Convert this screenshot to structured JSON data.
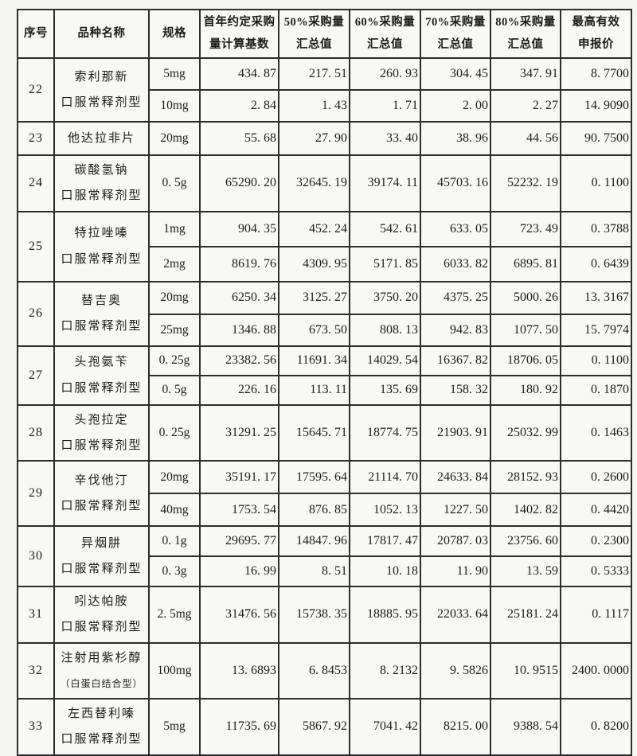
{
  "header": [
    "序号",
    "品种名称",
    "规格",
    "首年约定采购\n量计算基数",
    "50%采购量\n汇总值",
    "60%采购量\n汇总值",
    "70%采购量\n汇总值",
    "80%采购量\n汇总值",
    "最高有效\n申报价"
  ],
  "rows": [
    {
      "no": "22",
      "name": "索利那新",
      "name2": "口服常释剂型",
      "name2_small": false,
      "specs": [
        {
          "spec": "5mg",
          "base": "434.87",
          "p50": "217.51",
          "p60": "260.93",
          "p70": "304.45",
          "p80": "347.91",
          "price": "8.7700"
        },
        {
          "spec": "10mg",
          "base": "2.84",
          "p50": "1.43",
          "p60": "1.71",
          "p70": "2.00",
          "p80": "2.27",
          "price": "14.9090"
        }
      ]
    },
    {
      "no": "23",
      "name": "他达拉非片",
      "name2": "",
      "name2_small": false,
      "specs": [
        {
          "spec": "20mg",
          "base": "55.68",
          "p50": "27.90",
          "p60": "33.40",
          "p70": "38.96",
          "p80": "44.56",
          "price": "90.7500"
        }
      ]
    },
    {
      "no": "24",
      "name": "碳酸氢钠",
      "name2": "口服常释剂型",
      "name2_small": false,
      "specs": [
        {
          "spec": "0.5g",
          "base": "65290.20",
          "p50": "32645.19",
          "p60": "39174.11",
          "p70": "45703.16",
          "p80": "52232.19",
          "price": "0.1100"
        }
      ]
    },
    {
      "no": "25",
      "name": "特拉唑嗪",
      "name2": "口服常释剂型",
      "name2_small": false,
      "specs": [
        {
          "spec": "1mg",
          "base": "904.35",
          "p50": "452.24",
          "p60": "542.61",
          "p70": "633.05",
          "p80": "723.49",
          "price": "0.3788"
        },
        {
          "spec": "2mg",
          "base": "8619.76",
          "p50": "4309.95",
          "p60": "5171.85",
          "p70": "6033.82",
          "p80": "6895.81",
          "price": "0.6439"
        }
      ]
    },
    {
      "no": "26",
      "name": "替吉奥",
      "name2": "口服常释剂型",
      "name2_small": false,
      "specs": [
        {
          "spec": "20mg",
          "base": "6250.34",
          "p50": "3125.27",
          "p60": "3750.20",
          "p70": "4375.25",
          "p80": "5000.26",
          "price": "13.3167"
        },
        {
          "spec": "25mg",
          "base": "1346.88",
          "p50": "673.50",
          "p60": "808.13",
          "p70": "942.83",
          "p80": "1077.50",
          "price": "15.7974"
        }
      ]
    },
    {
      "no": "27",
      "name": "头孢氨苄",
      "name2": "口服常释剂型",
      "name2_small": false,
      "specs": [
        {
          "spec": "0.25g",
          "base": "23382.56",
          "p50": "11691.34",
          "p60": "14029.54",
          "p70": "16367.82",
          "p80": "18706.05",
          "price": "0.1100"
        },
        {
          "spec": "0.5g",
          "base": "226.16",
          "p50": "113.11",
          "p60": "135.69",
          "p70": "158.32",
          "p80": "180.92",
          "price": "0.1870"
        }
      ]
    },
    {
      "no": "28",
      "name": "头孢拉定",
      "name2": "口服常释剂型",
      "name2_small": false,
      "specs": [
        {
          "spec": "0.25g",
          "base": "31291.25",
          "p50": "15645.71",
          "p60": "18774.75",
          "p70": "21903.91",
          "p80": "25032.99",
          "price": "0.1463"
        }
      ]
    },
    {
      "no": "29",
      "name": "辛伐他汀",
      "name2": "口服常释剂型",
      "name2_small": false,
      "specs": [
        {
          "spec": "20mg",
          "base": "35191.17",
          "p50": "17595.64",
          "p60": "21114.70",
          "p70": "24633.84",
          "p80": "28152.93",
          "price": "0.2600"
        },
        {
          "spec": "40mg",
          "base": "1753.54",
          "p50": "876.85",
          "p60": "1052.13",
          "p70": "1227.50",
          "p80": "1402.82",
          "price": "0.4420"
        }
      ]
    },
    {
      "no": "30",
      "name": "异烟肼",
      "name2": "口服常释剂型",
      "name2_small": false,
      "specs": [
        {
          "spec": "0.1g",
          "base": "29695.77",
          "p50": "14847.96",
          "p60": "17817.47",
          "p70": "20787.03",
          "p80": "23756.60",
          "price": "0.2300"
        },
        {
          "spec": "0.3g",
          "base": "16.99",
          "p50": "8.51",
          "p60": "10.18",
          "p70": "11.90",
          "p80": "13.59",
          "price": "0.5333"
        }
      ]
    },
    {
      "no": "31",
      "name": "吲达帕胺",
      "name2": "口服常释剂型",
      "name2_small": false,
      "specs": [
        {
          "spec": "2.5mg",
          "base": "31476.56",
          "p50": "15738.35",
          "p60": "18885.95",
          "p70": "22033.64",
          "p80": "25181.24",
          "price": "0.1117"
        }
      ]
    },
    {
      "no": "32",
      "name": "注射用紫杉醇",
      "name2": "（白蛋白结合型）",
      "name2_small": true,
      "specs": [
        {
          "spec": "100mg",
          "base": "13.6893",
          "p50": "6.8453",
          "p60": "8.2132",
          "p70": "9.5826",
          "p80": "10.9515",
          "price": "2400.0000"
        }
      ]
    },
    {
      "no": "33",
      "name": "左西替利嗪",
      "name2": "口服常释剂型",
      "name2_small": false,
      "specs": [
        {
          "spec": "5mg",
          "base": "11735.69",
          "p50": "5867.92",
          "p60": "7041.42",
          "p70": "8215.00",
          "p80": "9388.54",
          "price": "0.8200"
        }
      ]
    }
  ]
}
